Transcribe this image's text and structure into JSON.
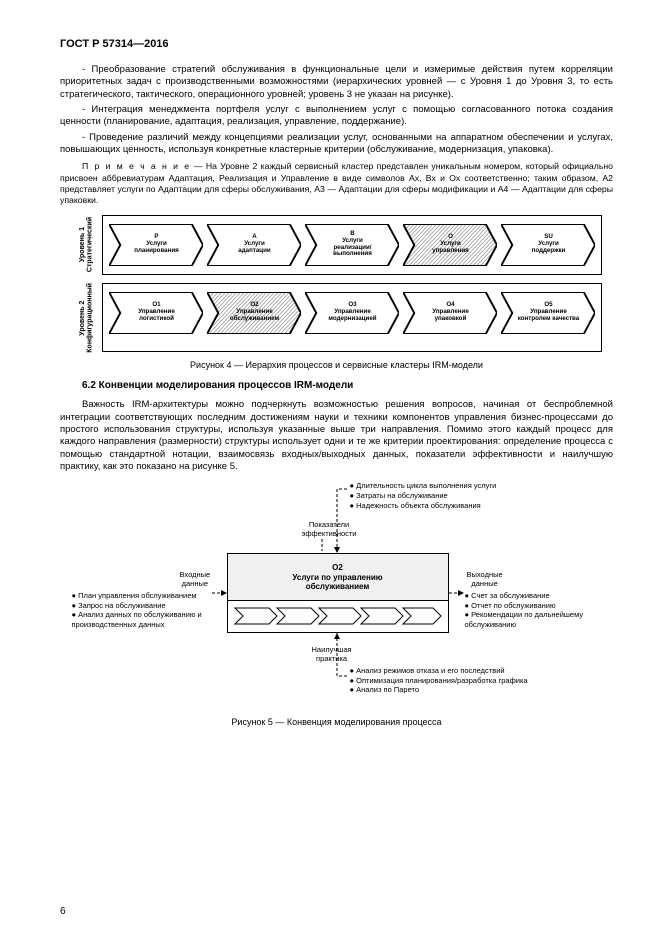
{
  "header": "ГОСТ Р 57314—2016",
  "paragraphs": {
    "p1": "- Преобразование стратегий обслуживания в функциональные цели и измеримые действия путем корреляции приоритетных задач с производственными возможностями (иерархических уровней — с Уровня 1 до Уровня 3, то есть стратегического, тактического, операционного уровней; уровень 3 не указан на рисунке).",
    "p2": "- Интеграция менеджмента портфеля услуг с выполнением услуг с помощью согласованного потока создания ценности (планирование, адаптация, реализация, управление, поддержание).",
    "p3": "- Проведение различий между концепциями реализации услуг, основанными на аппаратном обеспечении и услугах, повышающих ценность, используя конкретные кластерные критерии (обслуживание, модернизация, упаковка)."
  },
  "note": {
    "label": "П р и м е ч а н и е",
    "text": " — На Уровне 2 каждый сервисный кластер представлен уникальным номером, который официально присвоен аббревиатурам Адаптация, Реализация и Управление в виде символов Ах, Вх и Ох соответственно; таким образом, А2 представляет услуги по Адаптации для сферы обслуживания, А3 — Адаптации для сферы модификации и А4 — Адаптации для сферы упаковки."
  },
  "fig4": {
    "row1_label": "Уровень 1\nСтратегический",
    "row2_label": "Уровень 2\nКонфигурационный",
    "row1": [
      {
        "code": "P",
        "t1": "Услуги",
        "t2": "планирования",
        "hatched": false
      },
      {
        "code": "A",
        "t1": "Услуги",
        "t2": "адаптации",
        "hatched": false
      },
      {
        "code": "B",
        "t1": "Услуги",
        "t2": "реализации/ выполнения",
        "hatched": false
      },
      {
        "code": "O",
        "t1": "Услуги",
        "t2": "управления",
        "hatched": true
      },
      {
        "code": "SU",
        "t1": "Услуги",
        "t2": "поддержки",
        "hatched": false
      }
    ],
    "row2": [
      {
        "code": "O1",
        "t1": "Управление",
        "t2": "логистикой",
        "hatched": false
      },
      {
        "code": "O2",
        "t1": "Управление",
        "t2": "обслуживанием",
        "hatched": true
      },
      {
        "code": "O3",
        "t1": "Управление",
        "t2": "модернизацией",
        "hatched": false
      },
      {
        "code": "O4",
        "t1": "Управление",
        "t2": "упаковкой",
        "hatched": false
      },
      {
        "code": "O5",
        "t1": "Управление",
        "t2": "контролем качества",
        "hatched": false
      }
    ],
    "caption": "Рисунок 4 — Иерархия процессов и сервисные кластеры IRM-модели",
    "stroke": "#000000",
    "hatch_fill": "#d0d0d0"
  },
  "section62": "6.2 Конвенции моделирования процессов IRM-модели",
  "para62": "Важность IRM-архитектуры можно подчеркнуть возможностью решения вопросов, начиная от беспроблемной интеграции соответствующих последним достижениям науки и техники компонентов управления бизнес-процессами до простого использования структуры, используя указанные выше три направления. Помимо этого каждый процесс для каждого направления (размерности) структуры использует одни и те же критерии проектирования: определение процесса с помощью стандартной нотации, взаимосвязь входных/выходных данных, показатели эффективности и наилучшую практику, как это показано на рисунке 5.",
  "fig5": {
    "top_label": "Показатели\nэффективности",
    "top_items": [
      "● Длительность цикла выполнения услуги",
      "● Затраты на обслуживание",
      "● Надежность объекта обслуживания"
    ],
    "left_label": "Входные\nданные",
    "left_items": [
      "● План управления обслуживанием",
      "● Запрос на обслуживание",
      "● Анализ данных по обслуживанию и производственных данных"
    ],
    "center_code": "O2",
    "center_t1": "Услуги по управлению",
    "center_t2": "обслуживанием",
    "right_label": "Выходные\nданные",
    "right_items": [
      "● Счет за обслуживание",
      "● Отчет по обслуживанию",
      "● Рекомендации по дальнейшему обслуживанию"
    ],
    "bottom_label": "Наилучшая\nпрактика",
    "bottom_items": [
      "● Анализ режимов отказа и его последствий",
      "● Оптимизация планирования/разработка графика",
      "● Анализ по Парето"
    ],
    "caption": "Рисунок 5 — Конвенция моделирования процесса"
  },
  "page_number": "6"
}
